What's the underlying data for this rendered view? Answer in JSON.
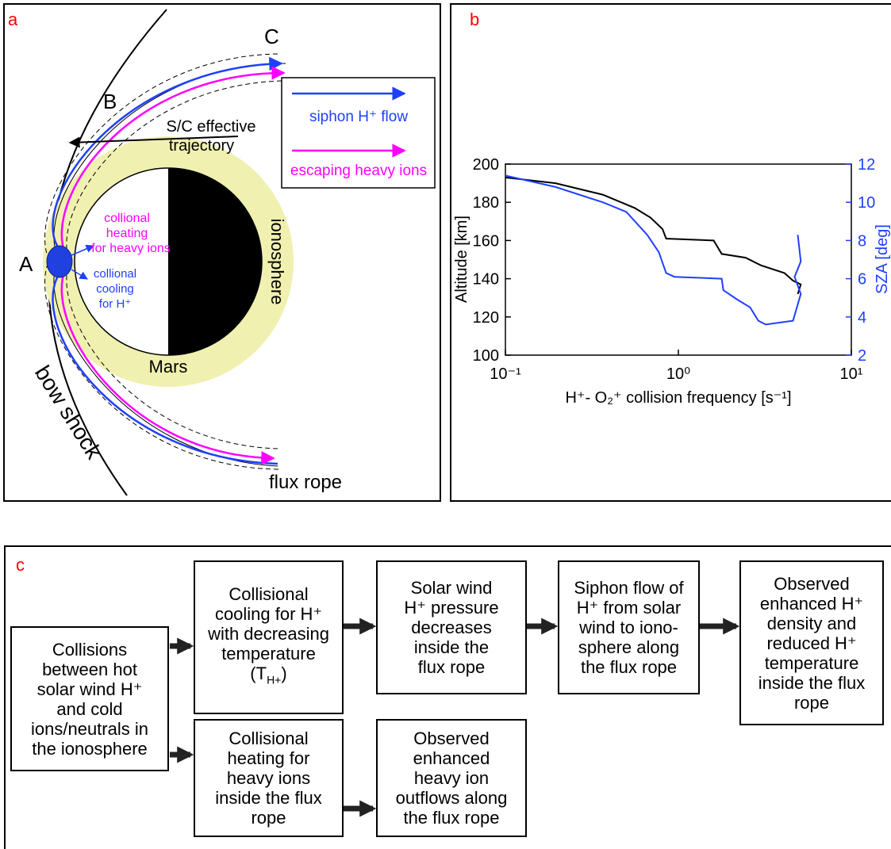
{
  "panel_a": {
    "label": "a",
    "point_c": "C",
    "point_b": "B",
    "point_a": "A",
    "trajectory": [
      "S/C effective",
      "trajectory"
    ],
    "legend": [
      "siphon H⁺ flow",
      "escaping heavy ions"
    ],
    "heating": [
      "collional",
      "heating",
      "for heavy ions"
    ],
    "cooling": [
      "collional",
      "cooling",
      "for H⁺"
    ],
    "ionosphere": "ionosphere",
    "mars": "Mars",
    "bow_shock": "bow shock",
    "flux_rope": "flux rope"
  },
  "chart_data": {
    "type": "line",
    "panel_label": "b",
    "xlabel": "H⁺- O₂⁺ collision frequency [s⁻¹]",
    "ylabel": "Altitude [km]",
    "y2label": "SZA [deg]",
    "xlog": true,
    "xlim": [
      0.1,
      10
    ],
    "xticks": [
      {
        "value": 0.1,
        "label": "10⁻¹"
      },
      {
        "value": 1,
        "label": "10⁰"
      },
      {
        "value": 10,
        "label": "10¹"
      }
    ],
    "ylim": [
      100,
      200
    ],
    "yticks": [
      100,
      120,
      140,
      160,
      180,
      200
    ],
    "y2lim": [
      2,
      12
    ],
    "y2ticks": [
      2,
      4,
      6,
      8,
      10,
      12
    ],
    "y2color": "#1f3fff",
    "series": [
      {
        "color": "#000000",
        "x": [
          0.1,
          0.195,
          0.366,
          0.56,
          0.69,
          0.81,
          0.85,
          1.6,
          1.78,
          2.45,
          3.0,
          4.1,
          4.6,
          5.1,
          4.9
        ],
        "values": [
          193,
          190,
          184,
          177,
          172,
          166,
          161,
          160,
          153,
          151,
          147,
          143,
          139,
          137,
          132
        ]
      },
      {
        "color": "#1f3fff",
        "axis": "y2",
        "x": [
          0.1,
          0.195,
          0.366,
          0.5,
          0.66,
          0.77,
          0.85,
          0.95,
          1.78,
          1.82,
          2.2,
          2.6,
          2.9,
          3.2,
          4.6,
          5.1,
          4.7,
          5.1,
          4.9
        ],
        "values": [
          11.4,
          10.8,
          10.0,
          9.5,
          8.3,
          7.4,
          6.3,
          6.1,
          6.0,
          5.4,
          4.9,
          4.5,
          3.8,
          3.6,
          3.8,
          5.2,
          6.1,
          6.9,
          8.3
        ]
      }
    ]
  },
  "panel_c": {
    "label": "c",
    "boxes": [
      {
        "lines": [
          "Collisions",
          "between hot",
          "solar wind H⁺",
          "and cold",
          "ions/neutrals in",
          "the ionosphere"
        ]
      },
      {
        "lines": [
          "Collisional",
          "cooling for H⁺",
          "with decreasing",
          "temperature",
          {
            "open": "(T",
            "sub": "H+",
            "close": ")"
          }
        ]
      },
      {
        "lines": [
          "Solar wind",
          "H⁺ pressure",
          "decreases",
          "inside the",
          "flux rope"
        ]
      },
      {
        "lines": [
          "Siphon flow of",
          "H⁺ from solar",
          "wind to iono-",
          "sphere along",
          "the flux rope"
        ]
      },
      {
        "lines": [
          "Observed",
          "enhanced H⁺",
          "density and",
          "reduced H⁺",
          "temperature",
          "inside the flux",
          "rope"
        ]
      },
      {
        "lines": [
          "Collisional",
          "heating for",
          "heavy ions",
          "inside the flux",
          "rope"
        ]
      },
      {
        "lines": [
          "Observed",
          "enhanced",
          "heavy ion",
          "outflows along",
          "the flux rope"
        ]
      }
    ]
  }
}
